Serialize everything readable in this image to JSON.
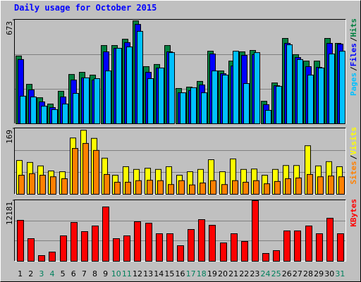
{
  "title": "Daily usage for October 2015",
  "legend_separator": "/",
  "chart_data": [
    {
      "type": "bar",
      "ylim": [
        0,
        673
      ],
      "yticks": [
        673
      ],
      "series": [
        {
          "name": "Hits",
          "color": "#008040",
          "values": [
            440,
            256,
            169,
            128,
            211,
            320,
            334,
            316,
            508,
            508,
            549,
            668,
            371,
            385,
            508,
            229,
            238,
            275,
            471,
            343,
            407,
            467,
            476,
            146,
            265,
            554,
            449,
            407,
            407,
            554,
            522
          ]
        },
        {
          "name": "Files",
          "color": "#0000ff",
          "values": [
            417,
            220,
            142,
            105,
            174,
            284,
            298,
            284,
            467,
            490,
            527,
            645,
            334,
            362,
            467,
            201,
            215,
            252,
            453,
            325,
            375,
            444,
            449,
            124,
            247,
            522,
            430,
            371,
            366,
            522,
            517
          ]
        },
        {
          "name": "Pages",
          "color": "#00c0ff",
          "values": [
            179,
            174,
            114,
            92,
            128,
            197,
            298,
            293,
            343,
            490,
            499,
            600,
            293,
            362,
            462,
            201,
            234,
            201,
            343,
            316,
            471,
            261,
            462,
            87,
            243,
            513,
            417,
            316,
            362,
            453,
            471
          ]
        }
      ]
    },
    {
      "type": "bar",
      "ylim": [
        0,
        169
      ],
      "yticks": [
        169
      ],
      "series": [
        {
          "name": "Visits",
          "color": "#ffff00",
          "values": [
            87,
            82,
            73,
            60,
            58,
            145,
            165,
            144,
            93,
            49,
            71,
            64,
            67,
            64,
            71,
            49,
            58,
            64,
            89,
            58,
            91,
            64,
            65,
            49,
            64,
            74,
            74,
            125,
            73,
            84,
            71
          ]
        },
        {
          "name": "Sites",
          "color": "#ff8000",
          "values": [
            49,
            53,
            49,
            45,
            40,
            118,
            131,
            113,
            51,
            31,
            31,
            35,
            36,
            35,
            25,
            35,
            24,
            29,
            35,
            25,
            35,
            31,
            35,
            27,
            33,
            40,
            42,
            51,
            45,
            47,
            45
          ]
        }
      ]
    },
    {
      "type": "bar",
      "ylim": [
        0,
        12181
      ],
      "yticks": [
        12181
      ],
      "categories": [
        "1",
        "2",
        "3",
        "4",
        "5",
        "6",
        "7",
        "8",
        "9",
        "10",
        "11",
        "12",
        "13",
        "14",
        "15",
        "16",
        "17",
        "18",
        "19",
        "20",
        "21",
        "22",
        "23",
        "24",
        "25",
        "26",
        "27",
        "28",
        "29",
        "30",
        "31"
      ],
      "category_colors": [
        "#000000",
        "#000000",
        "#00805c",
        "#00805c",
        "#000000",
        "#000000",
        "#000000",
        "#000000",
        "#000000",
        "#00805c",
        "#00805c",
        "#000000",
        "#000000",
        "#000000",
        "#000000",
        "#000000",
        "#00805c",
        "#00805c",
        "#000000",
        "#000000",
        "#000000",
        "#000000",
        "#000000",
        "#00805c",
        "#00805c",
        "#000000",
        "#000000",
        "#000000",
        "#000000",
        "#000000",
        "#00805c"
      ],
      "series": [
        {
          "name": "KBytes",
          "color": "#ff0000",
          "values": [
            8215,
            4532,
            1133,
            1841,
            5099,
            7790,
            5949,
            7082,
            10906,
            4532,
            5099,
            7932,
            7649,
            5524,
            5524,
            3116,
            6374,
            8357,
            7224,
            3683,
            5524,
            3966,
            12181,
            1558,
            2125,
            6090,
            6090,
            7082,
            5524,
            8640,
            5524
          ]
        }
      ]
    }
  ]
}
